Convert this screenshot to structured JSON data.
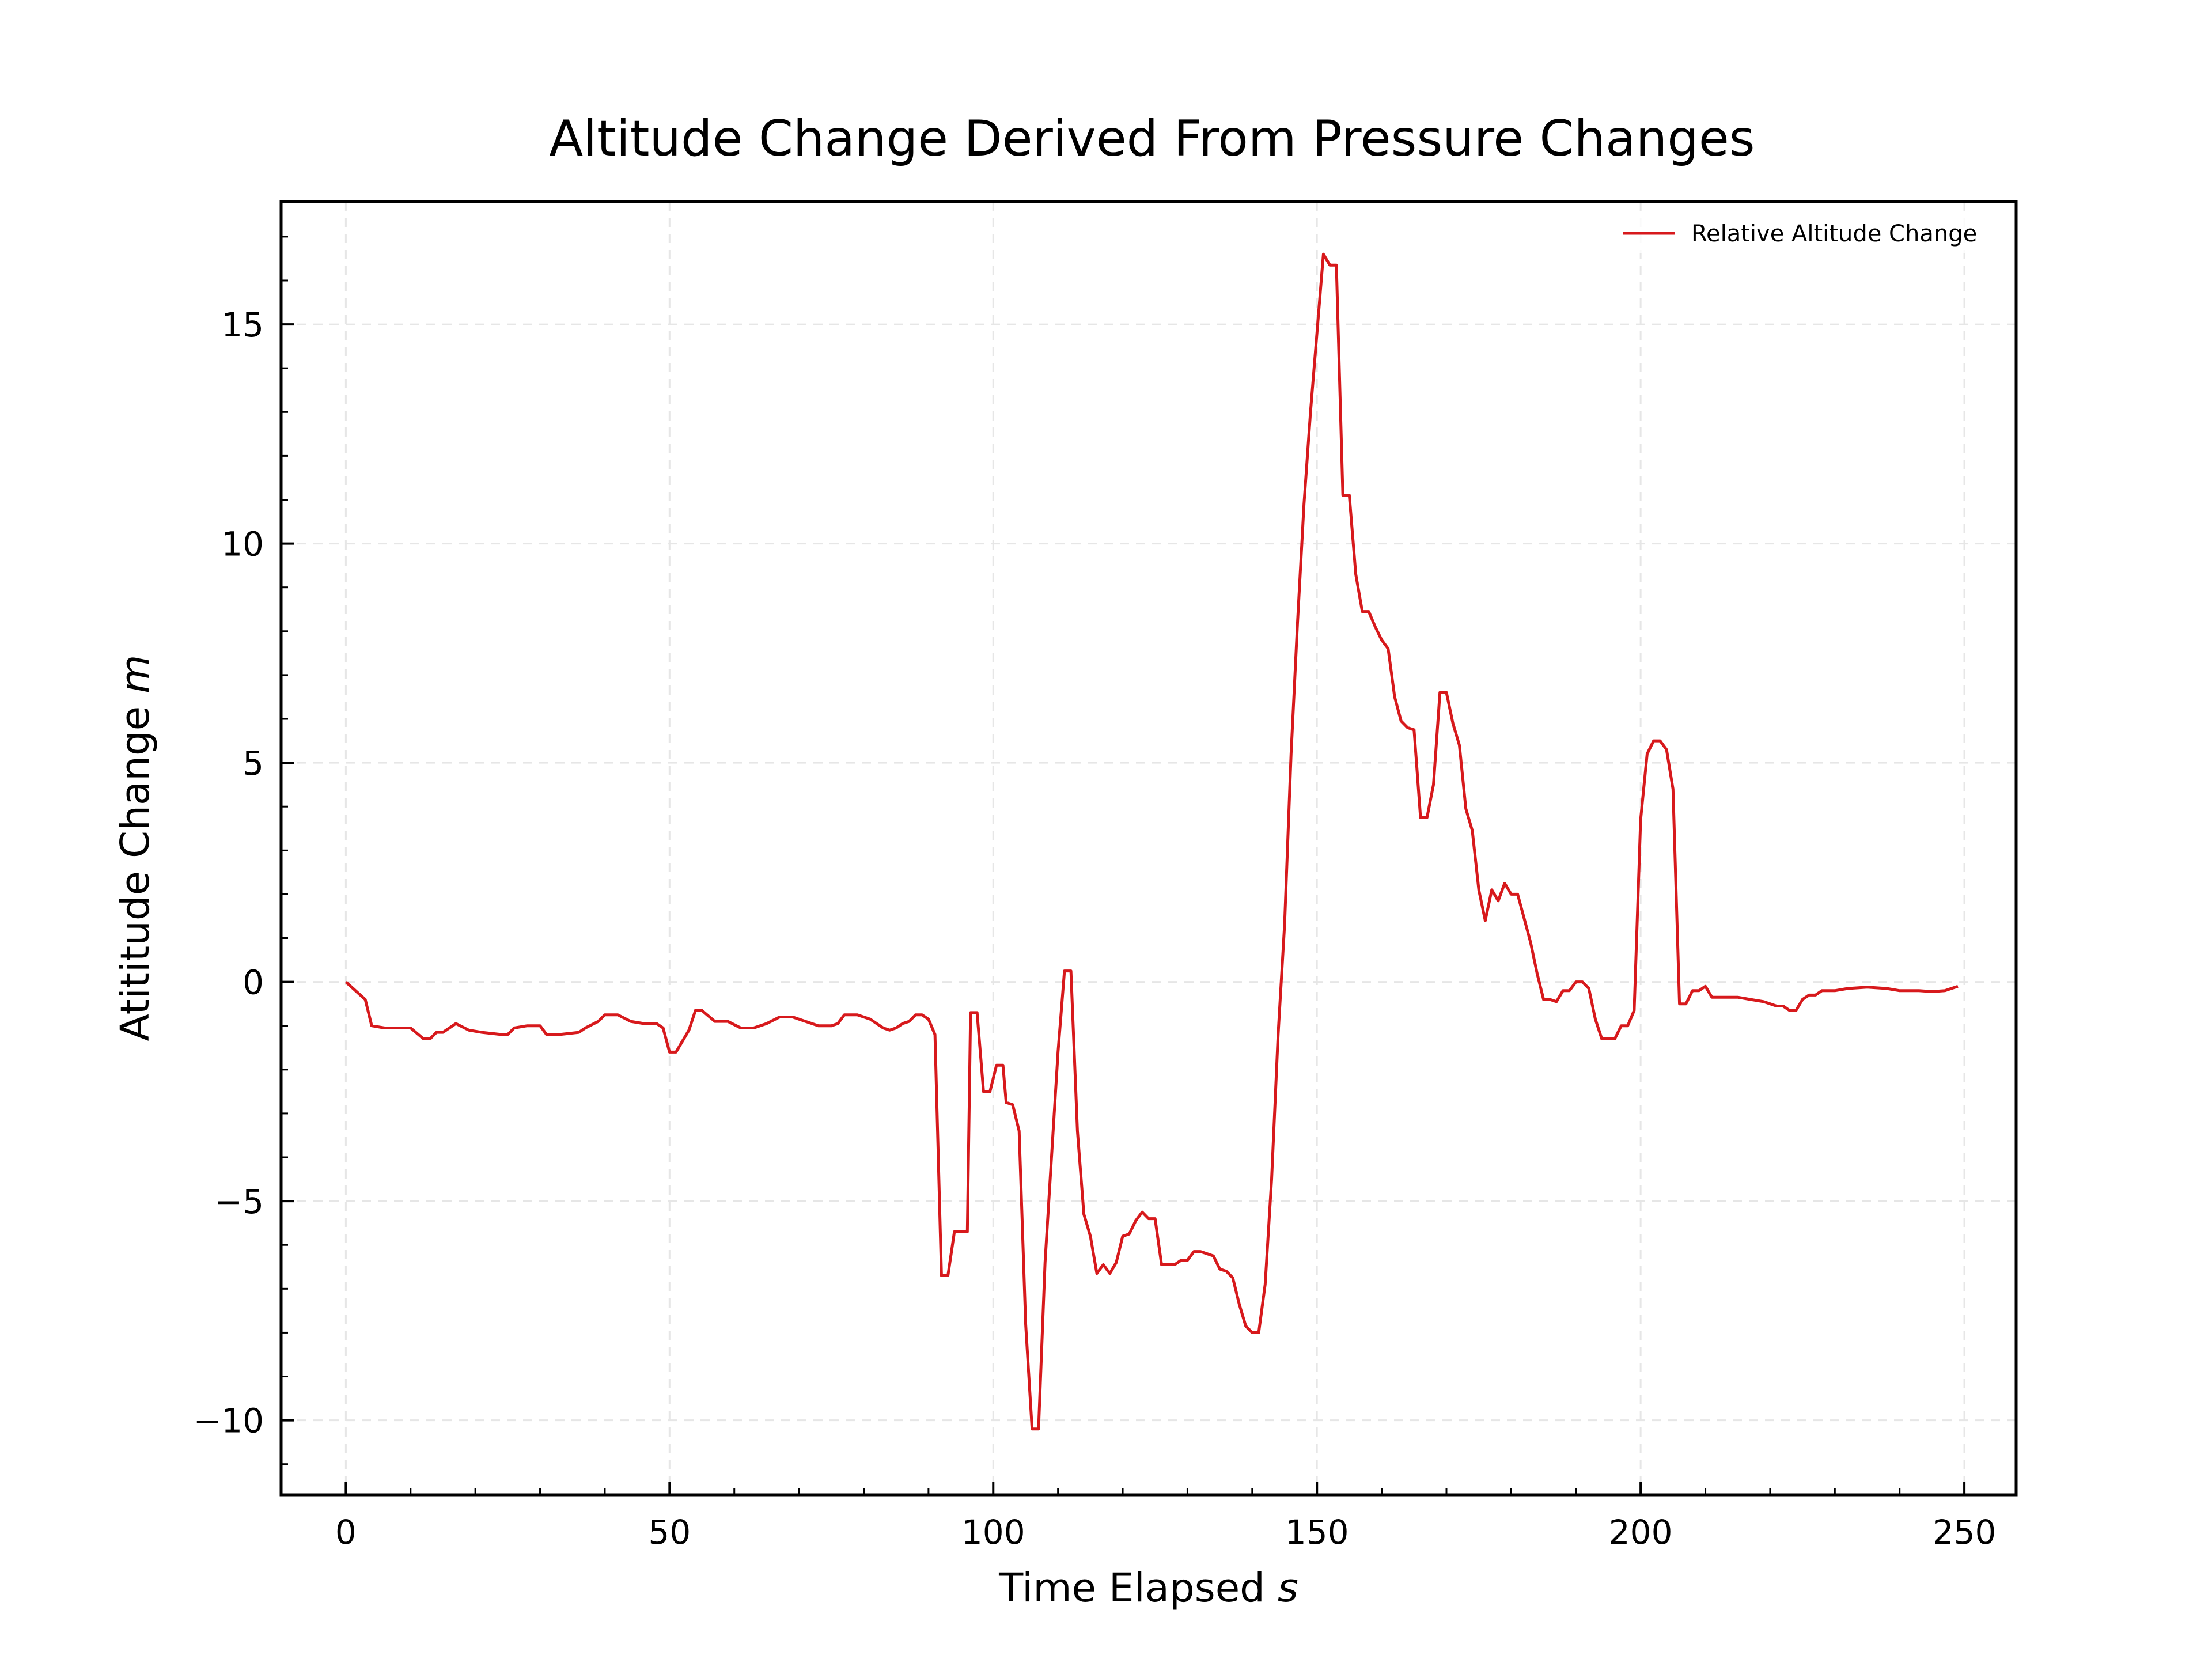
{
  "chart_data": {
    "type": "line",
    "title": "Altitude Change Derived From Pressure Changes",
    "xlabel_main": "Time Elapsed ",
    "xlabel_unit": "s",
    "ylabel_main": "Atititude Change ",
    "ylabel_unit": "m",
    "xlim": [
      -10,
      258
    ],
    "ylim": [
      -11.7,
      17.8
    ],
    "x_ticks": [
      0,
      50,
      100,
      150,
      200,
      250
    ],
    "x_tick_labels": [
      "0",
      "50",
      "100",
      "150",
      "200",
      "250"
    ],
    "y_ticks": [
      -10,
      -5,
      0,
      5,
      10,
      15
    ],
    "y_tick_labels": [
      "−10",
      "−5",
      "0",
      "5",
      "10",
      "15"
    ],
    "grid": true,
    "legend_position": "top-right",
    "colors": {
      "line": "#d7191c",
      "grid": "#e6e6e6",
      "axes": "#000000"
    },
    "series": [
      {
        "name": "Relative Altitude Change",
        "color": "#d7191c",
        "points": [
          [
            0,
            0
          ],
          [
            3,
            -0.4
          ],
          [
            4,
            -1.0
          ],
          [
            6,
            -1.05
          ],
          [
            8,
            -1.05
          ],
          [
            10,
            -1.05
          ],
          [
            12,
            -1.3
          ],
          [
            13,
            -1.3
          ],
          [
            14,
            -1.15
          ],
          [
            15,
            -1.15
          ],
          [
            17,
            -0.95
          ],
          [
            19,
            -1.1
          ],
          [
            21,
            -1.15
          ],
          [
            24,
            -1.2
          ],
          [
            25,
            -1.2
          ],
          [
            26,
            -1.05
          ],
          [
            28,
            -1.0
          ],
          [
            30,
            -1.0
          ],
          [
            31,
            -1.2
          ],
          [
            33,
            -1.2
          ],
          [
            36,
            -1.15
          ],
          [
            37,
            -1.05
          ],
          [
            39,
            -0.9
          ],
          [
            40,
            -0.75
          ],
          [
            42,
            -0.75
          ],
          [
            44,
            -0.9
          ],
          [
            46,
            -0.95
          ],
          [
            48,
            -0.95
          ],
          [
            49,
            -1.05
          ],
          [
            50,
            -1.6
          ],
          [
            51,
            -1.6
          ],
          [
            52,
            -1.35
          ],
          [
            53,
            -1.1
          ],
          [
            54,
            -0.65
          ],
          [
            55,
            -0.65
          ],
          [
            57,
            -0.9
          ],
          [
            59,
            -0.9
          ],
          [
            61,
            -1.05
          ],
          [
            63,
            -1.05
          ],
          [
            65,
            -0.95
          ],
          [
            67,
            -0.8
          ],
          [
            69,
            -0.8
          ],
          [
            71,
            -0.9
          ],
          [
            73,
            -1.0
          ],
          [
            75,
            -1.0
          ],
          [
            76,
            -0.95
          ],
          [
            77,
            -0.75
          ],
          [
            79,
            -0.75
          ],
          [
            81,
            -0.85
          ],
          [
            83,
            -1.05
          ],
          [
            84,
            -1.1
          ],
          [
            85,
            -1.05
          ],
          [
            86,
            -0.95
          ],
          [
            87,
            -0.9
          ],
          [
            88,
            -0.75
          ],
          [
            89,
            -0.75
          ],
          [
            90,
            -0.85
          ],
          [
            91,
            -1.2
          ],
          [
            92,
            -6.7
          ],
          [
            93,
            -6.7
          ],
          [
            94,
            -5.7
          ],
          [
            95,
            -5.7
          ],
          [
            96,
            -5.7
          ],
          [
            96.5,
            -0.7
          ],
          [
            97.5,
            -0.7
          ],
          [
            98.5,
            -2.5
          ],
          [
            99.5,
            -2.5
          ],
          [
            100.5,
            -1.9
          ],
          [
            101.5,
            -1.9
          ],
          [
            102,
            -2.75
          ],
          [
            103,
            -2.8
          ],
          [
            104,
            -3.4
          ],
          [
            105,
            -7.8
          ],
          [
            106,
            -10.2
          ],
          [
            107,
            -10.2
          ],
          [
            108,
            -6.4
          ],
          [
            109,
            -4.0
          ],
          [
            110,
            -1.6
          ],
          [
            111,
            0.25
          ],
          [
            112,
            0.25
          ],
          [
            113,
            -3.4
          ],
          [
            114,
            -5.3
          ],
          [
            115,
            -5.8
          ],
          [
            116,
            -6.65
          ],
          [
            117,
            -6.45
          ],
          [
            118,
            -6.65
          ],
          [
            119,
            -6.4
          ],
          [
            120,
            -5.8
          ],
          [
            121,
            -5.75
          ],
          [
            122,
            -5.45
          ],
          [
            123,
            -5.25
          ],
          [
            124,
            -5.4
          ],
          [
            125,
            -5.4
          ],
          [
            126,
            -6.45
          ],
          [
            127,
            -6.45
          ],
          [
            128,
            -6.45
          ],
          [
            129,
            -6.35
          ],
          [
            130,
            -6.35
          ],
          [
            131,
            -6.15
          ],
          [
            132,
            -6.15
          ],
          [
            133,
            -6.2
          ],
          [
            134,
            -6.25
          ],
          [
            135,
            -6.55
          ],
          [
            136,
            -6.6
          ],
          [
            137,
            -6.75
          ],
          [
            138,
            -7.35
          ],
          [
            139,
            -7.85
          ],
          [
            140,
            -8.0
          ],
          [
            141,
            -8.0
          ],
          [
            142,
            -6.9
          ],
          [
            143,
            -4.5
          ],
          [
            144,
            -1.2
          ],
          [
            145,
            1.3
          ],
          [
            146,
            5.2
          ],
          [
            147,
            8.2
          ],
          [
            148,
            10.9
          ],
          [
            149,
            13.0
          ],
          [
            150,
            14.8
          ],
          [
            151,
            16.6
          ],
          [
            152,
            16.35
          ],
          [
            153,
            16.35
          ],
          [
            154,
            11.1
          ],
          [
            155,
            11.1
          ],
          [
            156,
            9.3
          ],
          [
            157,
            8.45
          ],
          [
            158,
            8.45
          ],
          [
            159,
            8.1
          ],
          [
            160,
            7.8
          ],
          [
            161,
            7.6
          ],
          [
            162,
            6.5
          ],
          [
            163,
            5.95
          ],
          [
            164,
            5.8
          ],
          [
            165,
            5.75
          ],
          [
            166,
            3.75
          ],
          [
            167,
            3.75
          ],
          [
            168,
            4.5
          ],
          [
            169,
            6.6
          ],
          [
            170,
            6.6
          ],
          [
            171,
            5.9
          ],
          [
            172,
            5.4
          ],
          [
            173,
            3.95
          ],
          [
            174,
            3.45
          ],
          [
            175,
            2.1
          ],
          [
            176,
            1.4
          ],
          [
            177,
            2.1
          ],
          [
            178,
            1.85
          ],
          [
            179,
            2.25
          ],
          [
            180,
            2.0
          ],
          [
            181,
            2.0
          ],
          [
            182,
            1.45
          ],
          [
            183,
            0.9
          ],
          [
            184,
            0.2
          ],
          [
            185,
            -0.4
          ],
          [
            186,
            -0.4
          ],
          [
            187,
            -0.45
          ],
          [
            188,
            -0.2
          ],
          [
            189,
            -0.2
          ],
          [
            190,
            0.0
          ],
          [
            191,
            0.0
          ],
          [
            192,
            -0.15
          ],
          [
            193,
            -0.85
          ],
          [
            194,
            -1.3
          ],
          [
            195,
            -1.3
          ],
          [
            196,
            -1.3
          ],
          [
            197,
            -1.0
          ],
          [
            198,
            -1.0
          ],
          [
            199,
            -0.65
          ],
          [
            200,
            3.7
          ],
          [
            201,
            5.2
          ],
          [
            202,
            5.5
          ],
          [
            203,
            5.5
          ],
          [
            204,
            5.3
          ],
          [
            205,
            4.4
          ],
          [
            206,
            -0.5
          ],
          [
            207,
            -0.5
          ],
          [
            208,
            -0.2
          ],
          [
            209,
            -0.2
          ],
          [
            210,
            -0.1
          ],
          [
            211,
            -0.35
          ],
          [
            213,
            -0.35
          ],
          [
            215,
            -0.35
          ],
          [
            217,
            -0.4
          ],
          [
            219,
            -0.45
          ],
          [
            221,
            -0.55
          ],
          [
            222,
            -0.55
          ],
          [
            223,
            -0.65
          ],
          [
            224,
            -0.65
          ],
          [
            225,
            -0.4
          ],
          [
            226,
            -0.3
          ],
          [
            227,
            -0.3
          ],
          [
            228,
            -0.2
          ],
          [
            230,
            -0.2
          ],
          [
            232,
            -0.15
          ],
          [
            235,
            -0.12
          ],
          [
            238,
            -0.15
          ],
          [
            240,
            -0.2
          ],
          [
            243,
            -0.2
          ],
          [
            245,
            -0.22
          ],
          [
            247,
            -0.2
          ],
          [
            248,
            -0.15
          ],
          [
            249,
            -0.1
          ]
        ]
      }
    ]
  }
}
